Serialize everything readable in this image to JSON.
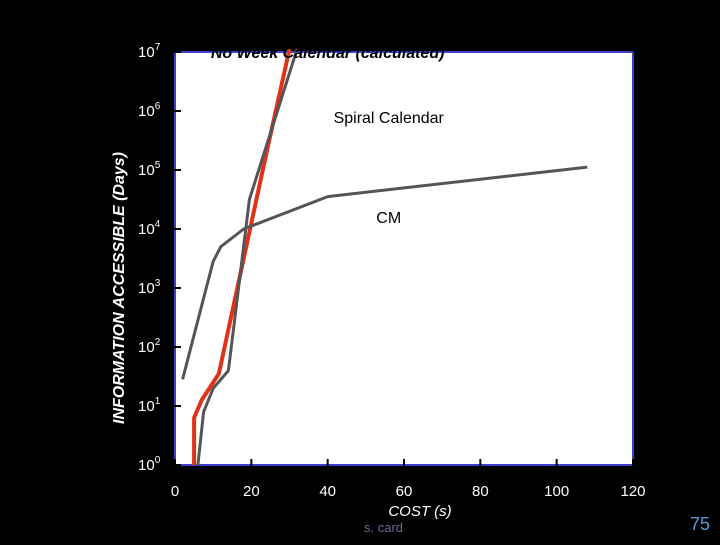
{
  "slide": {
    "footer": "s. card",
    "page_number": "75",
    "background": "#000000"
  },
  "chart_data": {
    "type": "line",
    "title": "",
    "xlabel": "COST (s)",
    "ylabel": "INFORMATION ACCESSIBLE (Days)",
    "xlim": [
      0,
      120
    ],
    "ylim_log10": [
      0,
      7
    ],
    "x_ticks": [
      "0",
      "20",
      "40",
      "60",
      "80",
      "100",
      "120"
    ],
    "y_ticks": [
      {
        "base": "10",
        "exp": "0"
      },
      {
        "base": "10",
        "exp": "1"
      },
      {
        "base": "10",
        "exp": "2"
      },
      {
        "base": "10",
        "exp": "3"
      },
      {
        "base": "10",
        "exp": "4"
      },
      {
        "base": "10",
        "exp": "5"
      },
      {
        "base": "10",
        "exp": "6"
      },
      {
        "base": "10",
        "exp": "7"
      }
    ],
    "y_scale": "log",
    "colors": {
      "axis": "#3e3ec8",
      "ink": "#000000",
      "text": "#ffffff",
      "label": "#000000"
    },
    "series": [
      {
        "name": "No Week Calendar (calculated)",
        "color": "#e03218",
        "width": 4,
        "points": [
          [
            5,
            0
          ],
          [
            5,
            0.8
          ],
          [
            7,
            1.1
          ],
          [
            11.5,
            1.55
          ],
          [
            24,
            5.3
          ],
          [
            30,
            7.05
          ]
        ]
      },
      {
        "name": "Spiral Calendar",
        "color": "#555555",
        "width": 3,
        "points": [
          [
            6,
            0
          ],
          [
            7.5,
            0.9
          ],
          [
            10,
            1.3
          ],
          [
            14,
            1.6
          ],
          [
            19.5,
            4.5
          ],
          [
            32,
            7.05
          ]
        ]
      },
      {
        "name": "CM",
        "color": "#555555",
        "width": 3,
        "points": [
          [
            2,
            1.45
          ],
          [
            8,
            2.95
          ],
          [
            10,
            3.45
          ],
          [
            12,
            3.7
          ],
          [
            18,
            4.0
          ],
          [
            40,
            4.55
          ],
          [
            108,
            5.05
          ]
        ]
      }
    ],
    "annotations": [
      {
        "text": "No Week Calendar (calculated)",
        "bold": true,
        "italic": true,
        "at": [
          40,
          7.0
        ]
      },
      {
        "text": "Spiral Calendar",
        "bold": false,
        "italic": false,
        "at": [
          56,
          5.9
        ]
      },
      {
        "text": "CM",
        "bold": false,
        "italic": false,
        "at": [
          56,
          4.2
        ]
      }
    ]
  }
}
